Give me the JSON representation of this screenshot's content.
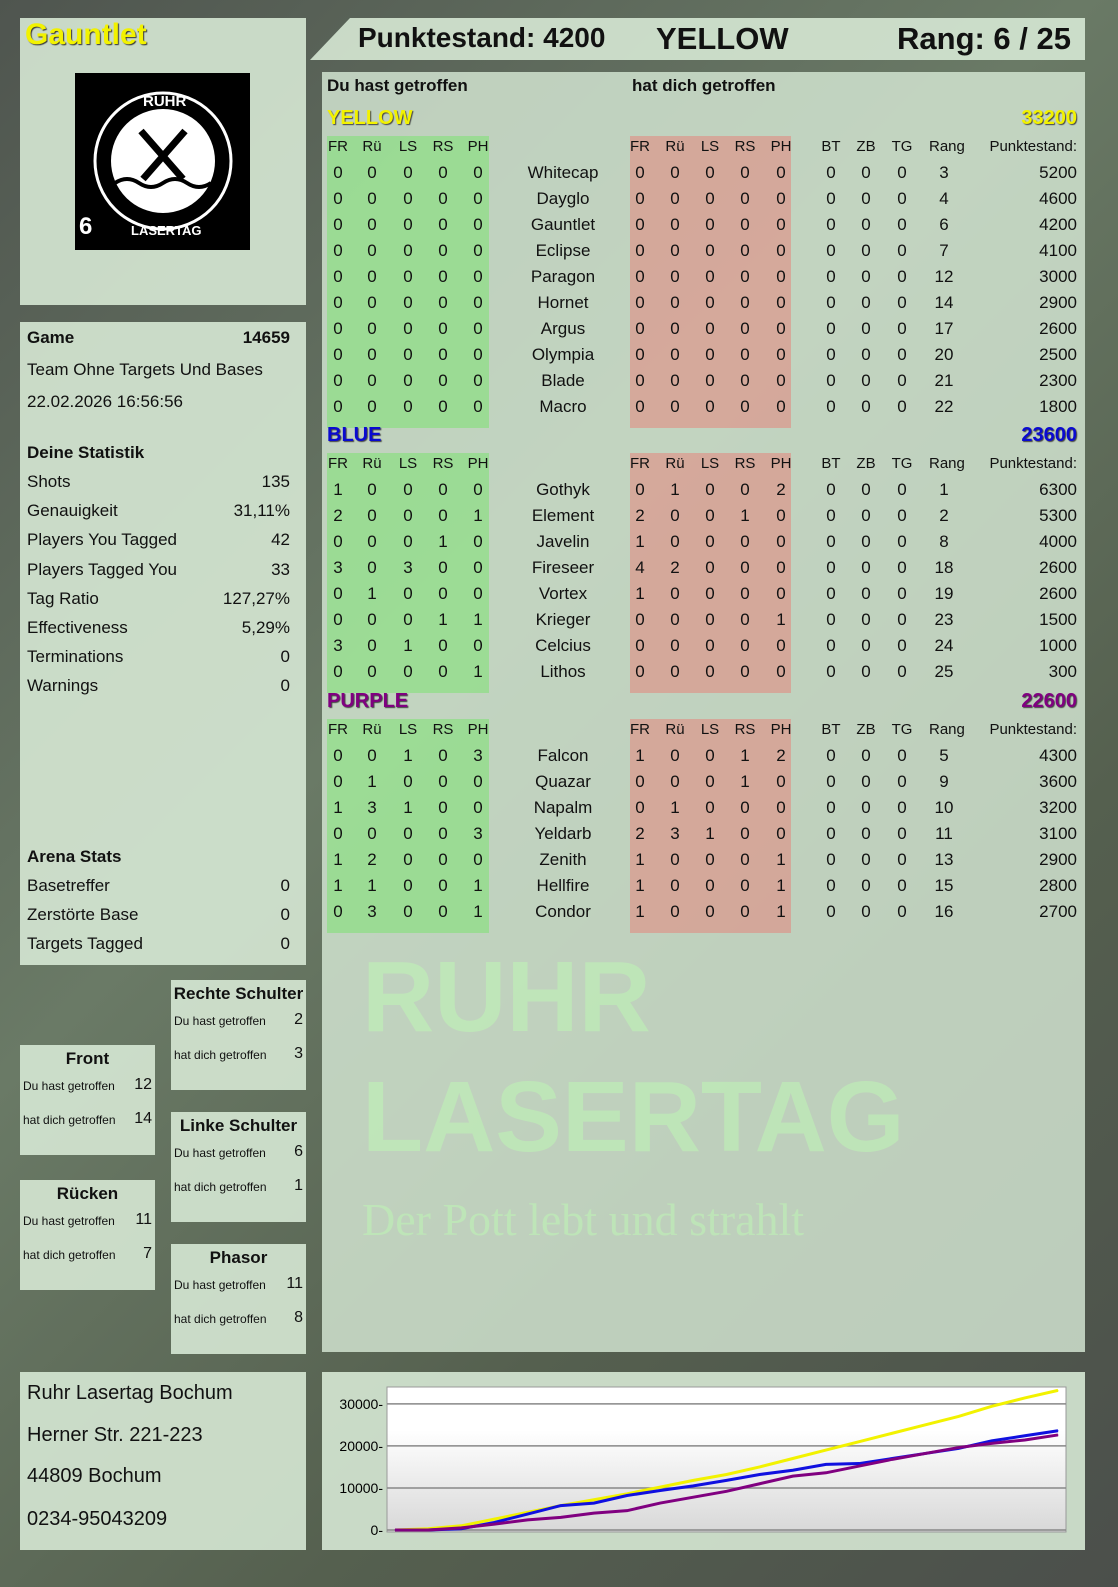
{
  "player": {
    "name": "Gauntlet",
    "number": "6",
    "score_label": "Punktestand: 4200",
    "team": "YELLOW",
    "rank_label": "Rang: 6 / 25"
  },
  "logo": {
    "top": "RUHR",
    "bottom": "LASERTAG"
  },
  "watermark": {
    "line1": "RUHR",
    "line2": "LASERTAG",
    "line3": "Der Pott lebt und strahlt"
  },
  "colors": {
    "yellow": "#f2f200",
    "blue": "#0a0ad0",
    "purple": "#800080",
    "green_cell": "#8fe08a",
    "red_cell": "#e0948a"
  },
  "game": {
    "label": "Game",
    "id": "14659",
    "mode": "Team Ohne Targets Und Bases",
    "datetime": "22.02.2026 16:56:56"
  },
  "stats": {
    "title": "Deine Statistik",
    "rows": [
      {
        "label": "Shots",
        "value": "135"
      },
      {
        "label": "Genauigkeit",
        "value": "31,11%"
      },
      {
        "label": "Players You Tagged",
        "value": "42"
      },
      {
        "label": "Players Tagged You",
        "value": "33"
      },
      {
        "label": "Tag Ratio",
        "value": "127,27%"
      },
      {
        "label": "Effectiveness",
        "value": "5,29%"
      },
      {
        "label": "Terminations",
        "value": "0"
      },
      {
        "label": "Warnings",
        "value": "0"
      }
    ]
  },
  "arena": {
    "title": "Arena Stats",
    "rows": [
      {
        "label": "Basetreffer",
        "value": "0"
      },
      {
        "label": "Zerstörte Base",
        "value": "0"
      },
      {
        "label": "Targets Tagged",
        "value": "0"
      }
    ]
  },
  "zones": [
    {
      "title": "Rechte Schulter",
      "hit_label": "Du hast getroffen",
      "hit": "2",
      "got_label": "hat dich getroffen",
      "got": "3"
    },
    {
      "title": "Front",
      "hit_label": "Du hast getroffen",
      "hit": "12",
      "got_label": "hat dich getroffen",
      "got": "14"
    },
    {
      "title": "Linke Schulter",
      "hit_label": "Du hast getroffen",
      "hit": "6",
      "got_label": "hat dich getroffen",
      "got": "1"
    },
    {
      "title": "Rücken",
      "hit_label": "Du hast getroffen",
      "hit": "11",
      "got_label": "hat dich getroffen",
      "got": "7"
    },
    {
      "title": "Phasor",
      "hit_label": "Du hast getroffen",
      "hit": "11",
      "got_label": "hat dich getroffen",
      "got": "8"
    }
  ],
  "address": [
    "Ruhr Lasertag Bochum",
    "Herner Str. 221-223",
    "44809 Bochum",
    "0234-95043209"
  ],
  "table": {
    "you_hit_label": "Du hast getroffen",
    "hit_you_label": "hat dich getroffen",
    "headers": [
      "FR",
      "Rü",
      "LS",
      "RS",
      "PH",
      "FR",
      "Rü",
      "LS",
      "RS",
      "PH",
      "BT",
      "ZB",
      "TG",
      "Rang",
      "Punktestand:"
    ],
    "teams": [
      {
        "name": "YELLOW",
        "score": "33200",
        "color": "#f2f200",
        "players": [
          [
            "0",
            "0",
            "0",
            "0",
            "0",
            "Whitecap",
            "0",
            "0",
            "0",
            "0",
            "0",
            "0",
            "0",
            "0",
            "3",
            "5200"
          ],
          [
            "0",
            "0",
            "0",
            "0",
            "0",
            "Dayglo",
            "0",
            "0",
            "0",
            "0",
            "0",
            "0",
            "0",
            "0",
            "4",
            "4600"
          ],
          [
            "0",
            "0",
            "0",
            "0",
            "0",
            "Gauntlet",
            "0",
            "0",
            "0",
            "0",
            "0",
            "0",
            "0",
            "0",
            "6",
            "4200"
          ],
          [
            "0",
            "0",
            "0",
            "0",
            "0",
            "Eclipse",
            "0",
            "0",
            "0",
            "0",
            "0",
            "0",
            "0",
            "0",
            "7",
            "4100"
          ],
          [
            "0",
            "0",
            "0",
            "0",
            "0",
            "Paragon",
            "0",
            "0",
            "0",
            "0",
            "0",
            "0",
            "0",
            "0",
            "12",
            "3000"
          ],
          [
            "0",
            "0",
            "0",
            "0",
            "0",
            "Hornet",
            "0",
            "0",
            "0",
            "0",
            "0",
            "0",
            "0",
            "0",
            "14",
            "2900"
          ],
          [
            "0",
            "0",
            "0",
            "0",
            "0",
            "Argus",
            "0",
            "0",
            "0",
            "0",
            "0",
            "0",
            "0",
            "0",
            "17",
            "2600"
          ],
          [
            "0",
            "0",
            "0",
            "0",
            "0",
            "Olympia",
            "0",
            "0",
            "0",
            "0",
            "0",
            "0",
            "0",
            "0",
            "20",
            "2500"
          ],
          [
            "0",
            "0",
            "0",
            "0",
            "0",
            "Blade",
            "0",
            "0",
            "0",
            "0",
            "0",
            "0",
            "0",
            "0",
            "21",
            "2300"
          ],
          [
            "0",
            "0",
            "0",
            "0",
            "0",
            "Macro",
            "0",
            "0",
            "0",
            "0",
            "0",
            "0",
            "0",
            "0",
            "22",
            "1800"
          ]
        ]
      },
      {
        "name": "BLUE",
        "score": "23600",
        "color": "#0a0ad0",
        "players": [
          [
            "1",
            "0",
            "0",
            "0",
            "0",
            "Gothyk",
            "0",
            "1",
            "0",
            "0",
            "2",
            "0",
            "0",
            "0",
            "1",
            "6300"
          ],
          [
            "2",
            "0",
            "0",
            "0",
            "1",
            "Element",
            "2",
            "0",
            "0",
            "1",
            "0",
            "0",
            "0",
            "0",
            "2",
            "5300"
          ],
          [
            "0",
            "0",
            "0",
            "1",
            "0",
            "Javelin",
            "1",
            "0",
            "0",
            "0",
            "0",
            "0",
            "0",
            "0",
            "8",
            "4000"
          ],
          [
            "3",
            "0",
            "3",
            "0",
            "0",
            "Fireseer",
            "4",
            "2",
            "0",
            "0",
            "0",
            "0",
            "0",
            "0",
            "18",
            "2600"
          ],
          [
            "0",
            "1",
            "0",
            "0",
            "0",
            "Vortex",
            "1",
            "0",
            "0",
            "0",
            "0",
            "0",
            "0",
            "0",
            "19",
            "2600"
          ],
          [
            "0",
            "0",
            "0",
            "1",
            "1",
            "Krieger",
            "0",
            "0",
            "0",
            "0",
            "1",
            "0",
            "0",
            "0",
            "23",
            "1500"
          ],
          [
            "3",
            "0",
            "1",
            "0",
            "0",
            "Celcius",
            "0",
            "0",
            "0",
            "0",
            "0",
            "0",
            "0",
            "0",
            "24",
            "1000"
          ],
          [
            "0",
            "0",
            "0",
            "0",
            "1",
            "Lithos",
            "0",
            "0",
            "0",
            "0",
            "0",
            "0",
            "0",
            "0",
            "25",
            "300"
          ]
        ]
      },
      {
        "name": "PURPLE",
        "score": "22600",
        "color": "#800080",
        "players": [
          [
            "0",
            "0",
            "1",
            "0",
            "3",
            "Falcon",
            "1",
            "0",
            "0",
            "1",
            "2",
            "0",
            "0",
            "0",
            "5",
            "4300"
          ],
          [
            "0",
            "1",
            "0",
            "0",
            "0",
            "Quazar",
            "0",
            "0",
            "0",
            "1",
            "0",
            "0",
            "0",
            "0",
            "9",
            "3600"
          ],
          [
            "1",
            "3",
            "1",
            "0",
            "0",
            "Napalm",
            "0",
            "1",
            "0",
            "0",
            "0",
            "0",
            "0",
            "0",
            "10",
            "3200"
          ],
          [
            "0",
            "0",
            "0",
            "0",
            "3",
            "Yeldarb",
            "2",
            "3",
            "1",
            "0",
            "0",
            "0",
            "0",
            "0",
            "11",
            "3100"
          ],
          [
            "1",
            "2",
            "0",
            "0",
            "0",
            "Zenith",
            "1",
            "0",
            "0",
            "0",
            "1",
            "0",
            "0",
            "0",
            "13",
            "2900"
          ],
          [
            "1",
            "1",
            "0",
            "0",
            "1",
            "Hellfire",
            "1",
            "0",
            "0",
            "0",
            "1",
            "0",
            "0",
            "0",
            "15",
            "2800"
          ],
          [
            "0",
            "3",
            "0",
            "0",
            "1",
            "Condor",
            "1",
            "0",
            "0",
            "0",
            "1",
            "0",
            "0",
            "0",
            "16",
            "2700"
          ]
        ]
      }
    ]
  },
  "chart_data": {
    "type": "line",
    "title": "",
    "xlabel": "",
    "ylabel": "",
    "ylim": [
      0,
      34000
    ],
    "yticks": [
      0,
      10000,
      20000,
      30000
    ],
    "grid": true,
    "x": [
      0,
      1,
      2,
      3,
      4,
      5,
      6,
      7,
      8,
      9,
      10,
      11,
      12,
      13,
      14,
      15,
      16,
      17,
      18,
      19,
      20
    ],
    "series": [
      {
        "color": "#f2f200",
        "values": [
          0,
          300,
          1000,
          2600,
          4200,
          5800,
          7200,
          8600,
          10200,
          11800,
          13200,
          15000,
          17000,
          19000,
          21000,
          23000,
          25000,
          27000,
          29400,
          31400,
          33200
        ]
      },
      {
        "color": "#1010e0",
        "values": [
          0,
          0,
          300,
          1800,
          3800,
          5800,
          6400,
          8200,
          9400,
          10500,
          11800,
          13200,
          14200,
          15600,
          15800,
          17000,
          18200,
          19400,
          21200,
          22400,
          23600
        ]
      },
      {
        "color": "#800080",
        "values": [
          0,
          0,
          500,
          1400,
          2400,
          3000,
          4000,
          4600,
          6400,
          7800,
          9200,
          11000,
          12800,
          13600,
          15200,
          16800,
          18200,
          19600,
          20600,
          21400,
          22600
        ]
      }
    ]
  }
}
